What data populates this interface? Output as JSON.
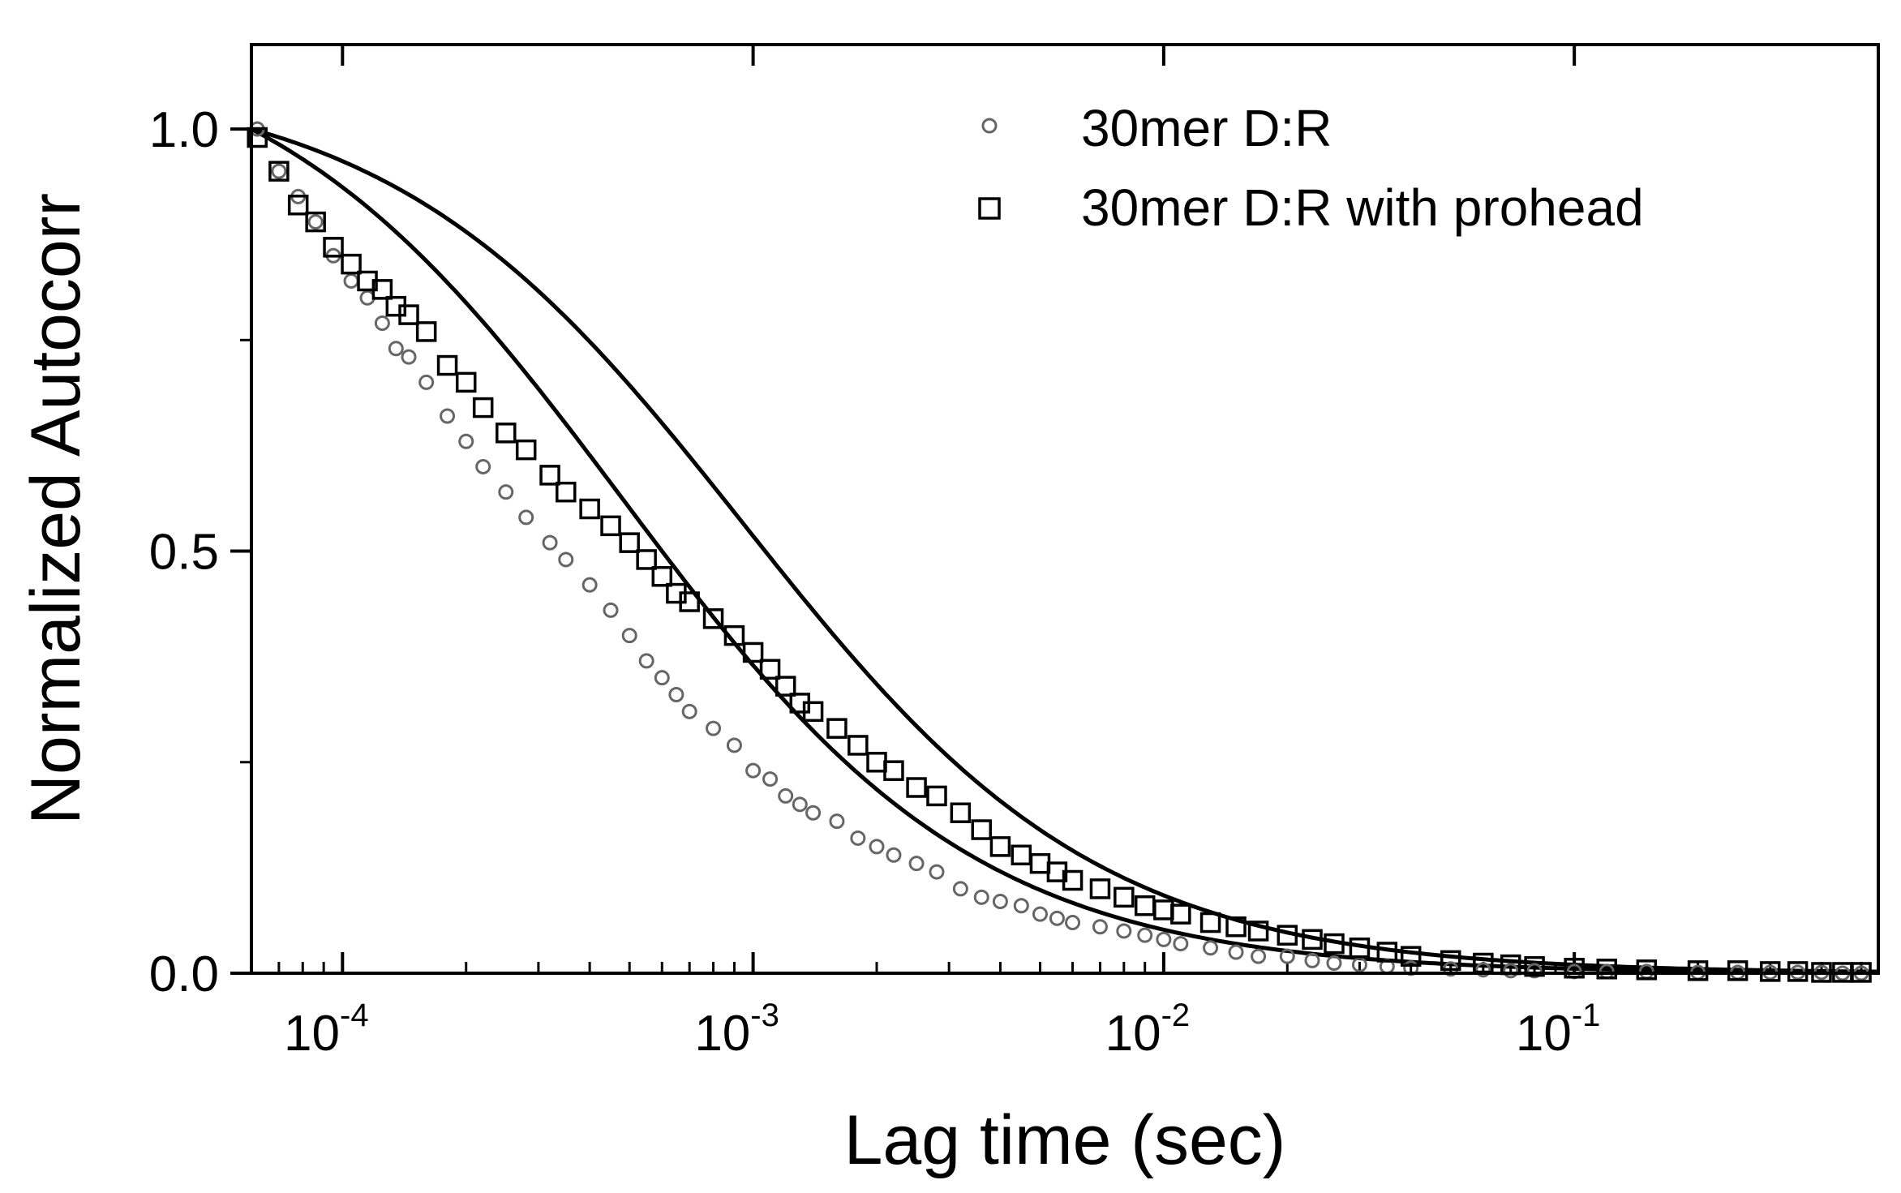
{
  "chart_data": {
    "type": "scatter",
    "title": "",
    "xlabel": "Lag time (sec)",
    "ylabel": "Normalized Autocorr",
    "xscale": "log",
    "xlim": [
      6e-05,
      0.55
    ],
    "ylim": [
      0.0,
      1.1
    ],
    "x_ticks": [
      {
        "base": "10",
        "exp": "-4",
        "value": 0.0001
      },
      {
        "base": "10",
        "exp": "-3",
        "value": 0.001
      },
      {
        "base": "10",
        "exp": "-2",
        "value": 0.01
      },
      {
        "base": "10",
        "exp": "-1",
        "value": 0.1
      }
    ],
    "y_ticks": [
      {
        "label": "0.0",
        "value": 0.0
      },
      {
        "label": "0.5",
        "value": 0.5
      },
      {
        "label": "1.0",
        "value": 1.0
      }
    ],
    "y_minor_ticks": [
      0.25,
      0.75
    ],
    "legend_position": "top-right",
    "series": [
      {
        "name": "30mer D:R",
        "marker": "circle",
        "fit_tau": 0.00048,
        "points": [
          [
            6.2e-05,
            1.0
          ],
          [
            7e-05,
            0.95
          ],
          [
            7.8e-05,
            0.92
          ],
          [
            8.6e-05,
            0.89
          ],
          [
            9.5e-05,
            0.85
          ],
          [
            0.000105,
            0.82
          ],
          [
            0.000115,
            0.8
          ],
          [
            0.000125,
            0.77
          ],
          [
            0.000135,
            0.74
          ],
          [
            0.000145,
            0.73
          ],
          [
            0.00016,
            0.7
          ],
          [
            0.00018,
            0.66
          ],
          [
            0.0002,
            0.63
          ],
          [
            0.00022,
            0.6
          ],
          [
            0.00025,
            0.57
          ],
          [
            0.00028,
            0.54
          ],
          [
            0.00032,
            0.51
          ],
          [
            0.00035,
            0.49
          ],
          [
            0.0004,
            0.46
          ],
          [
            0.00045,
            0.43
          ],
          [
            0.0005,
            0.4
          ],
          [
            0.00055,
            0.37
          ],
          [
            0.0006,
            0.35
          ],
          [
            0.00065,
            0.33
          ],
          [
            0.0007,
            0.31
          ],
          [
            0.0008,
            0.29
          ],
          [
            0.0009,
            0.27
          ],
          [
            0.001,
            0.24
          ],
          [
            0.0011,
            0.23
          ],
          [
            0.0012,
            0.21
          ],
          [
            0.0013,
            0.2
          ],
          [
            0.0014,
            0.19
          ],
          [
            0.0016,
            0.18
          ],
          [
            0.0018,
            0.16
          ],
          [
            0.002,
            0.15
          ],
          [
            0.0022,
            0.14
          ],
          [
            0.0025,
            0.13
          ],
          [
            0.0028,
            0.12
          ],
          [
            0.0032,
            0.1
          ],
          [
            0.0036,
            0.09
          ],
          [
            0.004,
            0.085
          ],
          [
            0.0045,
            0.08
          ],
          [
            0.005,
            0.07
          ],
          [
            0.0055,
            0.065
          ],
          [
            0.006,
            0.06
          ],
          [
            0.007,
            0.055
          ],
          [
            0.008,
            0.05
          ],
          [
            0.009,
            0.045
          ],
          [
            0.01,
            0.04
          ],
          [
            0.011,
            0.035
          ],
          [
            0.013,
            0.03
          ],
          [
            0.015,
            0.025
          ],
          [
            0.017,
            0.02
          ],
          [
            0.02,
            0.02
          ],
          [
            0.023,
            0.015
          ],
          [
            0.026,
            0.012
          ],
          [
            0.03,
            0.01
          ],
          [
            0.035,
            0.008
          ],
          [
            0.04,
            0.006
          ],
          [
            0.05,
            0.005
          ],
          [
            0.06,
            0.004
          ],
          [
            0.07,
            0.003
          ],
          [
            0.08,
            0.003
          ],
          [
            0.1,
            0.002
          ],
          [
            0.12,
            0.002
          ],
          [
            0.15,
            0.002
          ],
          [
            0.2,
            0.001
          ],
          [
            0.25,
            0.001
          ],
          [
            0.3,
            0.001
          ],
          [
            0.35,
            0.001
          ],
          [
            0.4,
            0.001
          ],
          [
            0.45,
            0.0
          ],
          [
            0.5,
            0.0
          ]
        ]
      },
      {
        "name": "30mer D:R with prohead",
        "marker": "square",
        "fit_tau": 0.00095,
        "points": [
          [
            6.2e-05,
            0.99
          ],
          [
            7e-05,
            0.95
          ],
          [
            7.8e-05,
            0.91
          ],
          [
            8.6e-05,
            0.89
          ],
          [
            9.5e-05,
            0.86
          ],
          [
            0.000105,
            0.84
          ],
          [
            0.000115,
            0.82
          ],
          [
            0.000125,
            0.81
          ],
          [
            0.000135,
            0.79
          ],
          [
            0.000145,
            0.78
          ],
          [
            0.00016,
            0.76
          ],
          [
            0.00018,
            0.72
          ],
          [
            0.0002,
            0.7
          ],
          [
            0.00022,
            0.67
          ],
          [
            0.00025,
            0.64
          ],
          [
            0.00028,
            0.62
          ],
          [
            0.00032,
            0.59
          ],
          [
            0.00035,
            0.57
          ],
          [
            0.0004,
            0.55
          ],
          [
            0.00045,
            0.53
          ],
          [
            0.0005,
            0.51
          ],
          [
            0.00055,
            0.49
          ],
          [
            0.0006,
            0.47
          ],
          [
            0.00065,
            0.45
          ],
          [
            0.0007,
            0.44
          ],
          [
            0.0008,
            0.42
          ],
          [
            0.0009,
            0.4
          ],
          [
            0.001,
            0.38
          ],
          [
            0.0011,
            0.36
          ],
          [
            0.0012,
            0.34
          ],
          [
            0.0013,
            0.32
          ],
          [
            0.0014,
            0.31
          ],
          [
            0.0016,
            0.29
          ],
          [
            0.0018,
            0.27
          ],
          [
            0.002,
            0.25
          ],
          [
            0.0022,
            0.24
          ],
          [
            0.0025,
            0.22
          ],
          [
            0.0028,
            0.21
          ],
          [
            0.0032,
            0.19
          ],
          [
            0.0036,
            0.17
          ],
          [
            0.004,
            0.15
          ],
          [
            0.0045,
            0.14
          ],
          [
            0.005,
            0.13
          ],
          [
            0.0055,
            0.12
          ],
          [
            0.006,
            0.11
          ],
          [
            0.007,
            0.1
          ],
          [
            0.008,
            0.09
          ],
          [
            0.009,
            0.08
          ],
          [
            0.01,
            0.075
          ],
          [
            0.011,
            0.07
          ],
          [
            0.013,
            0.06
          ],
          [
            0.015,
            0.055
          ],
          [
            0.017,
            0.05
          ],
          [
            0.02,
            0.045
          ],
          [
            0.023,
            0.04
          ],
          [
            0.026,
            0.035
          ],
          [
            0.03,
            0.03
          ],
          [
            0.035,
            0.025
          ],
          [
            0.04,
            0.02
          ],
          [
            0.05,
            0.015
          ],
          [
            0.06,
            0.012
          ],
          [
            0.07,
            0.01
          ],
          [
            0.08,
            0.008
          ],
          [
            0.1,
            0.006
          ],
          [
            0.12,
            0.005
          ],
          [
            0.15,
            0.004
          ],
          [
            0.2,
            0.003
          ],
          [
            0.25,
            0.003
          ],
          [
            0.3,
            0.002
          ],
          [
            0.35,
            0.002
          ],
          [
            0.4,
            0.001
          ],
          [
            0.45,
            0.001
          ],
          [
            0.5,
            0.001
          ]
        ]
      }
    ]
  }
}
